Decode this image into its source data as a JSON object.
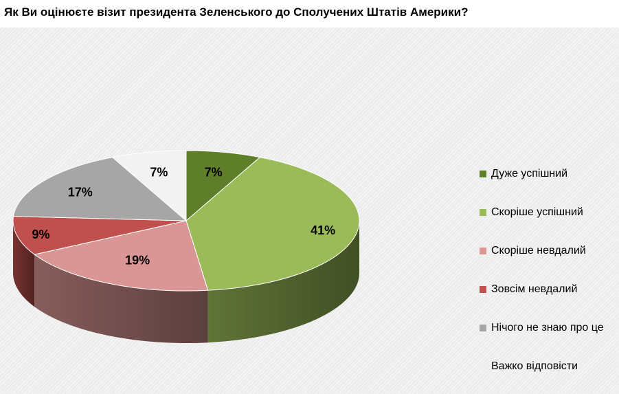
{
  "chart_data": {
    "type": "pie",
    "title": "Як Ви оцінюєте візит президента Зеленського до Сполучених Штатів Америки?",
    "legend_position": "right",
    "slices": [
      {
        "name": "Дуже успішний",
        "value": 7,
        "label": "7%",
        "color": "#5e7e2a"
      },
      {
        "name": "Скоріше успішний",
        "value": 41,
        "label": "41%",
        "color": "#9bbb59"
      },
      {
        "name": "Скоріше невдалий",
        "value": 19,
        "label": "19%",
        "color": "#d99694"
      },
      {
        "name": "Зовсім невдалий",
        "value": 9,
        "label": "9%",
        "color": "#c0504d"
      },
      {
        "name": "Нічого не знаю про це",
        "value": 17,
        "label": "17%",
        "color": "#a6a6a6"
      },
      {
        "name": "Важко відповісти",
        "value": 7,
        "label": "7%",
        "color": "#f2f2f2"
      }
    ]
  }
}
